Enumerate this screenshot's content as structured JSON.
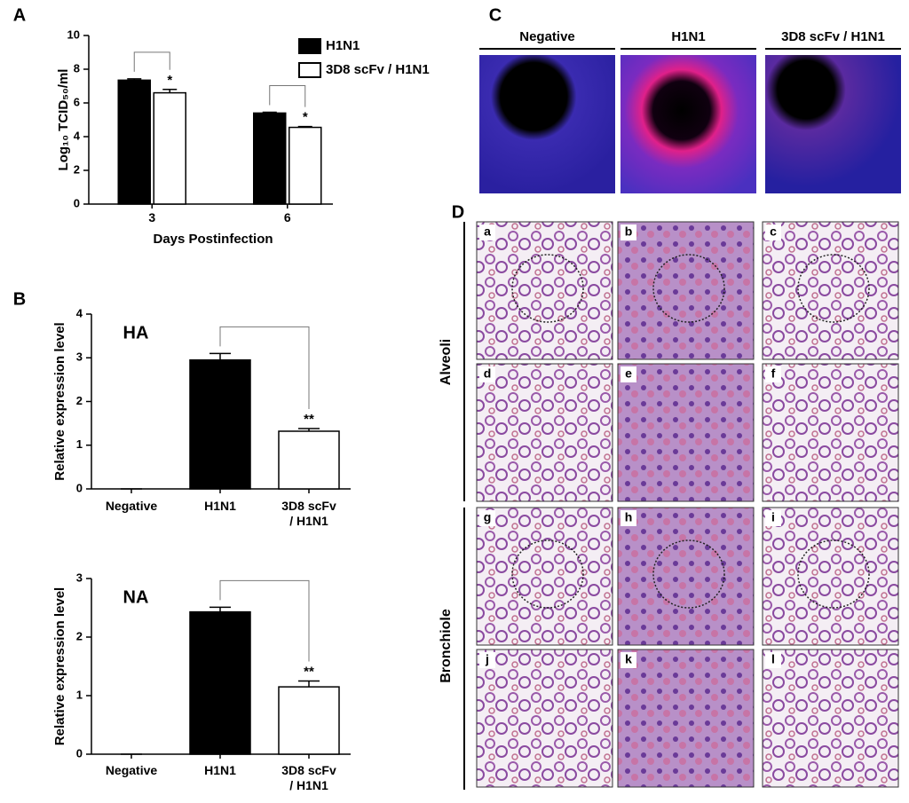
{
  "panel_labels": [
    "A",
    "B",
    "C",
    "D"
  ],
  "chart_data": [
    {
      "type": "bar",
      "ylabel": "Log₁₀ TCID₅₀/ml",
      "xlabel": "Days Postinfection",
      "categories": [
        "3",
        "6"
      ],
      "series": [
        {
          "name": "H1N1",
          "color": "#000000",
          "values": [
            7.35,
            5.4
          ],
          "errors": [
            0.08,
            0.05
          ]
        },
        {
          "name": "3D8 scFv / H1N1",
          "color": "#ffffff",
          "values": [
            6.6,
            4.55
          ],
          "errors": [
            0.2,
            0.05
          ]
        }
      ],
      "ylim": [
        0,
        10
      ],
      "yticks": [
        0,
        2,
        4,
        6,
        8,
        10
      ],
      "annotations": [
        "*",
        "*"
      ],
      "legend": "upper right"
    },
    {
      "type": "bar",
      "title": "HA",
      "ylabel": "Relative expression level",
      "categories": [
        "Negative",
        "H1N1",
        "3D8 scFv\n/ H1N1"
      ],
      "values": [
        0,
        2.95,
        1.32
      ],
      "errors": [
        0,
        0.15,
        0.06
      ],
      "colors": [
        "#000000",
        "#000000",
        "#ffffff"
      ],
      "ylim": [
        0,
        4
      ],
      "yticks": [
        0,
        1,
        2,
        3,
        4
      ],
      "annotations": [
        "**"
      ]
    },
    {
      "type": "bar",
      "title": "NA",
      "ylabel": "Relative expression level",
      "categories": [
        "Negative",
        "H1N1",
        "3D8 scFv\n/ H1N1"
      ],
      "values": [
        0,
        2.43,
        1.15
      ],
      "errors": [
        0,
        0.08,
        0.1
      ],
      "colors": [
        "#000000",
        "#000000",
        "#ffffff"
      ],
      "ylim": [
        0,
        3
      ],
      "yticks": [
        0,
        1,
        2,
        3
      ],
      "annotations": [
        "**"
      ]
    }
  ],
  "panel_c": {
    "columns": [
      "Negative",
      "H1N1",
      "3D8 scFv / H1N1"
    ]
  },
  "panel_d": {
    "rows": [
      "Alveoli",
      "Bronchiole"
    ],
    "tiles": [
      "a",
      "b",
      "c",
      "d",
      "e",
      "f",
      "g",
      "h",
      "i",
      "j",
      "k",
      "l"
    ]
  }
}
